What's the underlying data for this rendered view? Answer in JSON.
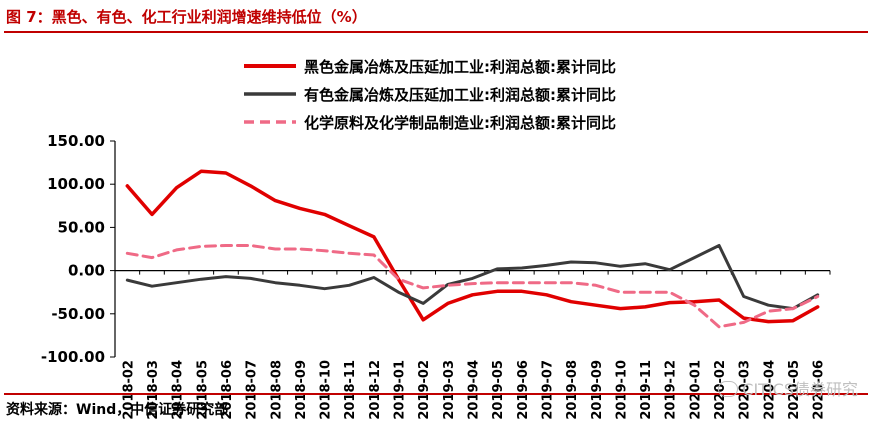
{
  "header": {
    "title": "图 7：黑色、有色、化工行业利润增速维持低位（%）"
  },
  "footer": {
    "source": "资料来源：Wind，中信证券研究部",
    "watermark": "CITICS债券研究"
  },
  "chart_data": {
    "type": "line",
    "title": "",
    "xlabel": "",
    "ylabel": "",
    "ylim": [
      -100,
      150
    ],
    "yticks": [
      "150.00",
      "100.00",
      "50.00",
      "0.00",
      "-50.00",
      "-100.00"
    ],
    "ytick_values": [
      150,
      100,
      50,
      0,
      -50,
      -100
    ],
    "grid": false,
    "legend_position": "top-center",
    "categories": [
      "2018-02",
      "2018-03",
      "2018-04",
      "2018-05",
      "2018-06",
      "2018-07",
      "2018-08",
      "2018-09",
      "2018-10",
      "2018-11",
      "2018-12",
      "2019-01",
      "2019-02",
      "2019-03",
      "2019-04",
      "2019-05",
      "2019-06",
      "2019-07",
      "2019-08",
      "2019-09",
      "2019-10",
      "2019-11",
      "2019-12",
      "2020-01",
      "2020-02",
      "2020-03",
      "2020-04",
      "2020-05",
      "2020-06"
    ],
    "series": [
      {
        "name": "黑色金属冶炼及压延加工业:利润总额:累计同比",
        "color": "#e00000",
        "dash": "solid",
        "values": [
          98,
          65,
          96,
          115,
          113,
          98,
          81,
          72,
          65,
          52,
          39,
          -10,
          -57,
          -38,
          -28,
          -24,
          -24,
          -28,
          -36,
          -40,
          -44,
          -42,
          -37,
          -36,
          -34,
          -55,
          -59,
          -58,
          -42
        ]
      },
      {
        "name": "有色金属冶炼及压延加工业:利润总额:累计同比",
        "color": "#3a3a3a",
        "dash": "solid",
        "values": [
          -11,
          -18,
          -14,
          -10,
          -7,
          -9,
          -14,
          -17,
          -21,
          -17,
          -8,
          -25,
          -38,
          -16,
          -9,
          2,
          3,
          6,
          10,
          9,
          5,
          8,
          1,
          15,
          29,
          -30,
          -40,
          -44,
          -28
        ]
      },
      {
        "name": "化学原料及化学制品制造业:利润总额:累计同比",
        "color": "#ef6a86",
        "dash": "dashed",
        "values": [
          20,
          15,
          24,
          28,
          29,
          29,
          25,
          25,
          23,
          20,
          18,
          -10,
          -20,
          -17,
          -15,
          -14,
          -14,
          -14,
          -14,
          -17,
          -25,
          -25,
          -25,
          -40,
          -65,
          -60,
          -47,
          -44,
          -30
        ]
      }
    ]
  }
}
